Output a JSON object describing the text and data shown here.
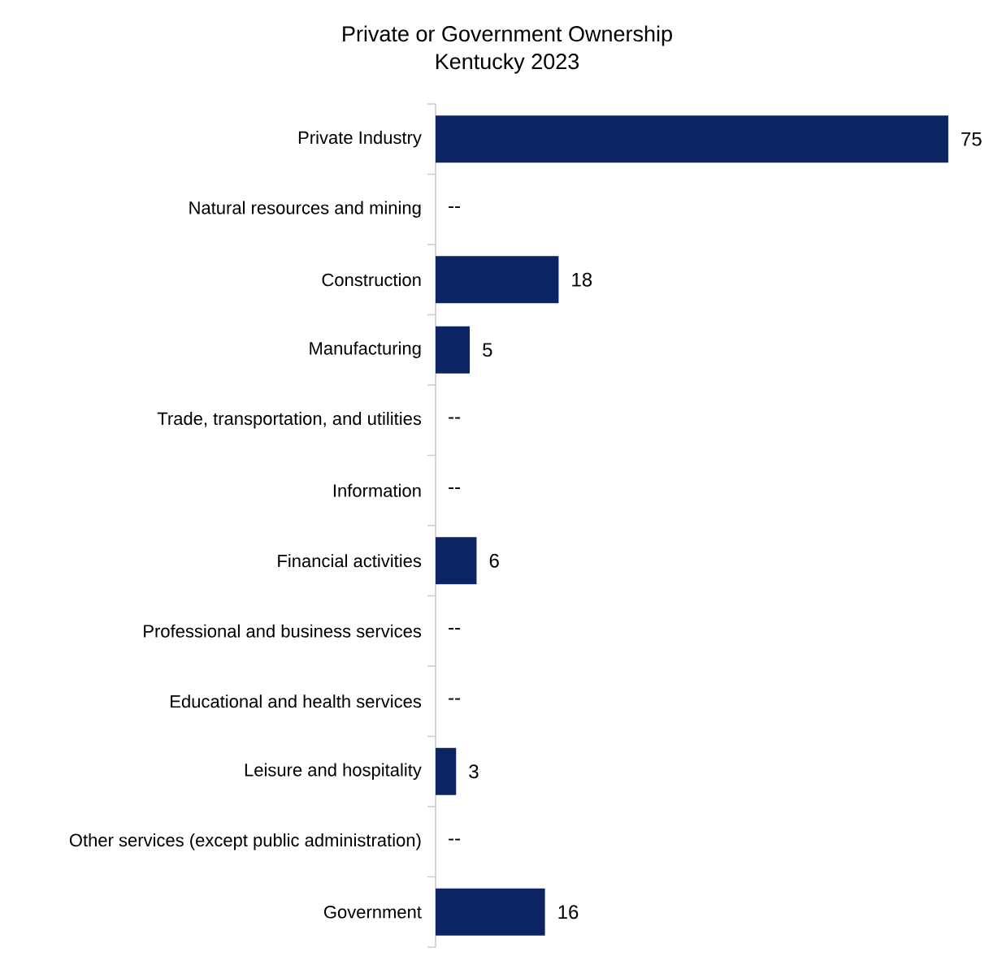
{
  "chart_data": {
    "type": "bar",
    "orientation": "horizontal",
    "title": "Private or Government Ownership",
    "subtitle": "Kentucky 2023",
    "categories": [
      "Private Industry",
      "Natural resources and mining",
      "Construction",
      "Manufacturing",
      "Trade, transportation, and utilities",
      "Information",
      "Financial activities",
      "Professional and business services",
      "Educational and health services",
      "Leisure and hospitality",
      "Other services (except public administration)",
      "Government"
    ],
    "values": [
      75,
      null,
      18,
      5,
      null,
      null,
      6,
      null,
      null,
      3,
      null,
      16
    ],
    "value_labels": [
      "75",
      "--",
      "18",
      "5",
      "--",
      "--",
      "6",
      "--",
      "--",
      "3",
      "--",
      "16"
    ],
    "color": "#0c2461"
  }
}
